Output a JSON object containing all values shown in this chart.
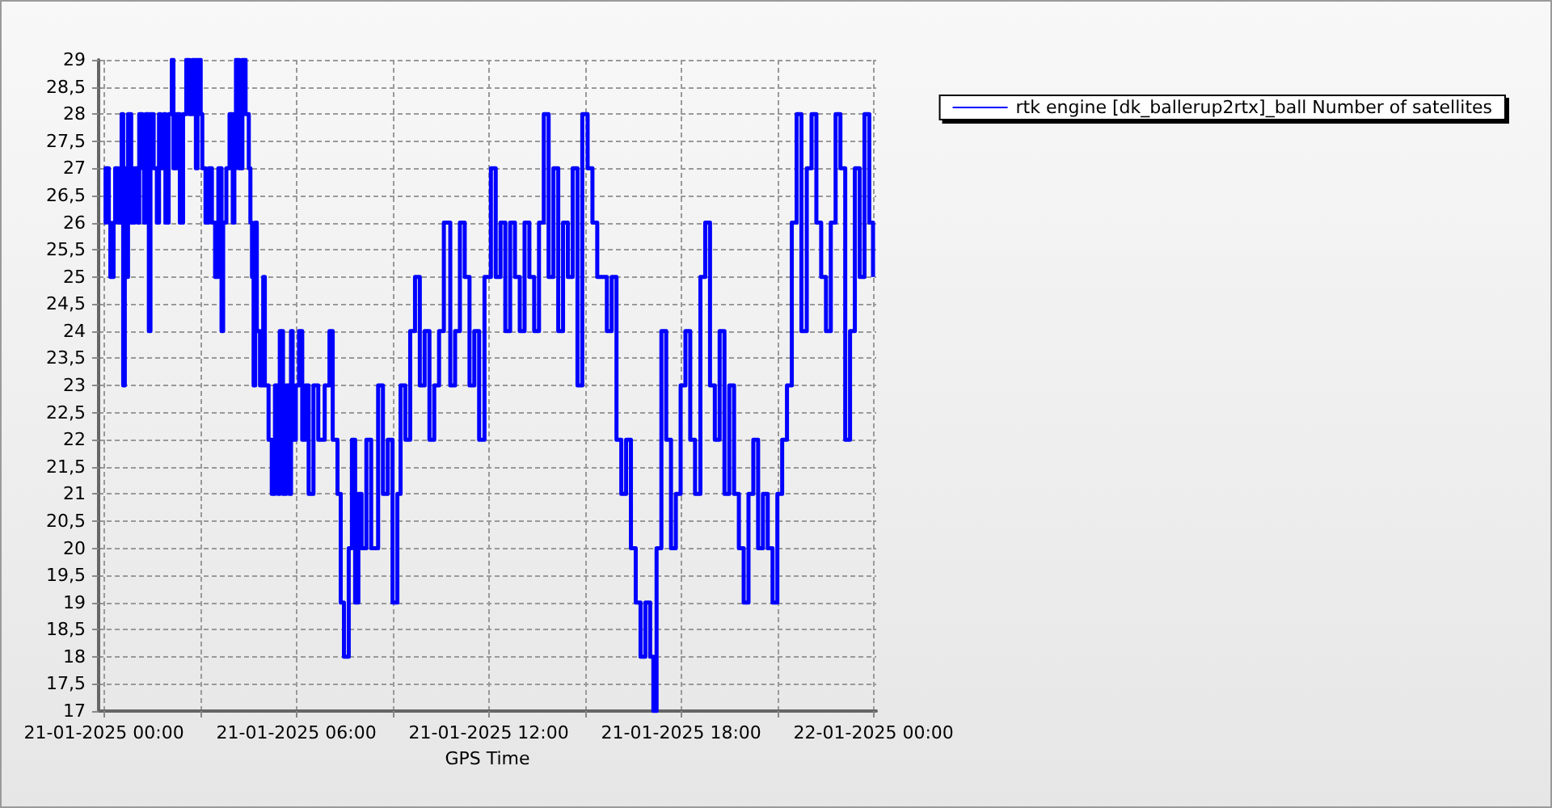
{
  "chart_data": {
    "type": "step",
    "xlabel": "GPS Time",
    "xlim": [
      "2025-01-20T23:50",
      "2025-01-22T00:05"
    ],
    "xticks": [
      {
        "value": "2025-01-21T00:00",
        "label": "21-01-2025 00:00"
      },
      {
        "value": "2025-01-21T03:00",
        "label": null
      },
      {
        "value": "2025-01-21T06:00",
        "label": "21-01-2025 06:00"
      },
      {
        "value": "2025-01-21T09:00",
        "label": null
      },
      {
        "value": "2025-01-21T12:00",
        "label": "21-01-2025 12:00"
      },
      {
        "value": "2025-01-21T15:00",
        "label": null
      },
      {
        "value": "2025-01-21T18:00",
        "label": "21-01-2025 18:00"
      },
      {
        "value": "2025-01-21T21:00",
        "label": null
      },
      {
        "value": "2025-01-22T00:00",
        "label": "22-01-2025 00:00"
      }
    ],
    "ylim": [
      17,
      29
    ],
    "yticks": [
      17,
      {
        "value": 17.5,
        "label": "17,5"
      },
      18,
      {
        "value": 18.5,
        "label": "18,5"
      },
      19,
      {
        "value": 19.5,
        "label": "19,5"
      },
      20,
      {
        "value": 20.5,
        "label": "20,5"
      },
      21,
      {
        "value": 21.5,
        "label": "21,5"
      },
      22,
      {
        "value": 22.5,
        "label": "22,5"
      },
      23,
      {
        "value": 23.5,
        "label": "23,5"
      },
      24,
      {
        "value": 24.5,
        "label": "24,5"
      },
      25,
      {
        "value": 25.5,
        "label": "25,5"
      },
      26,
      {
        "value": 26.5,
        "label": "26,5"
      },
      27,
      {
        "value": 27.5,
        "label": "27,5"
      },
      28,
      {
        "value": 28.5,
        "label": "28,5"
      },
      29
    ],
    "grid": true,
    "legend": "top right",
    "marker": "none",
    "line_style": "solid",
    "x": [
      "2025-01-21T00:00",
      "2025-01-21T00:03",
      "2025-01-21T00:09",
      "2025-01-21T00:12",
      "2025-01-21T00:18",
      "2025-01-21T00:21",
      "2025-01-21T00:27",
      "2025-01-21T00:33",
      "2025-01-21T00:36",
      "2025-01-21T00:39",
      "2025-01-21T00:42",
      "2025-01-21T00:45",
      "2025-01-21T00:51",
      "2025-01-21T00:57",
      "2025-01-21T01:03",
      "2025-01-21T01:06",
      "2025-01-21T01:12",
      "2025-01-21T01:15",
      "2025-01-21T01:18",
      "2025-01-21T01:24",
      "2025-01-21T01:27",
      "2025-01-21T01:33",
      "2025-01-21T01:39",
      "2025-01-21T01:43",
      "2025-01-21T01:46",
      "2025-01-21T01:52",
      "2025-01-21T01:55",
      "2025-01-21T02:01",
      "2025-01-21T02:07",
      "2025-01-21T02:10",
      "2025-01-21T02:16",
      "2025-01-21T02:22",
      "2025-01-21T02:28",
      "2025-01-21T02:34",
      "2025-01-21T02:40",
      "2025-01-21T02:46",
      "2025-01-21T02:52",
      "2025-01-21T02:55",
      "2025-01-21T03:01",
      "2025-01-21T03:04",
      "2025-01-21T03:10",
      "2025-01-21T03:16",
      "2025-01-21T03:22",
      "2025-01-21T03:28",
      "2025-01-21T03:34",
      "2025-01-21T03:40",
      "2025-01-21T03:43",
      "2025-01-21T03:49",
      "2025-01-21T03:55",
      "2025-01-21T04:01",
      "2025-01-21T04:04",
      "2025-01-21T04:07",
      "2025-01-21T04:13",
      "2025-01-21T04:19",
      "2025-01-21T04:25",
      "2025-01-21T04:31",
      "2025-01-21T04:34",
      "2025-01-21T04:37",
      "2025-01-21T04:40",
      "2025-01-21T04:43",
      "2025-01-21T04:46",
      "2025-01-21T04:52",
      "2025-01-21T04:58",
      "2025-01-21T05:01",
      "2025-01-21T05:08",
      "2025-01-21T05:14",
      "2025-01-21T05:20",
      "2025-01-21T05:26",
      "2025-01-21T05:29",
      "2025-01-21T05:35",
      "2025-01-21T05:41",
      "2025-01-21T05:47",
      "2025-01-21T05:50",
      "2025-01-21T05:53",
      "2025-01-21T05:59",
      "2025-01-21T06:05",
      "2025-01-21T06:11",
      "2025-01-21T06:17",
      "2025-01-21T06:23",
      "2025-01-21T06:32",
      "2025-01-21T06:41",
      "2025-01-21T06:53",
      "2025-01-21T07:02",
      "2025-01-21T07:08",
      "2025-01-21T07:17",
      "2025-01-21T07:23",
      "2025-01-21T07:29",
      "2025-01-21T07:38",
      "2025-01-21T07:44",
      "2025-01-21T07:50",
      "2025-01-21T07:56",
      "2025-01-21T08:02",
      "2025-01-21T08:11",
      "2025-01-21T08:20",
      "2025-01-21T08:33",
      "2025-01-21T08:42",
      "2025-01-21T08:51",
      "2025-01-21T09:00",
      "2025-01-21T09:09",
      "2025-01-21T09:15",
      "2025-01-21T09:24",
      "2025-01-21T09:33",
      "2025-01-21T09:42",
      "2025-01-21T09:51",
      "2025-01-21T10:00",
      "2025-01-21T10:09",
      "2025-01-21T10:18",
      "2025-01-21T10:27",
      "2025-01-21T10:36",
      "2025-01-21T10:48",
      "2025-01-21T10:57",
      "2025-01-21T11:06",
      "2025-01-21T11:15",
      "2025-01-21T11:24",
      "2025-01-21T11:33",
      "2025-01-21T11:42",
      "2025-01-21T11:52",
      "2025-01-21T12:04",
      "2025-01-21T12:13",
      "2025-01-21T12:22",
      "2025-01-21T12:31",
      "2025-01-21T12:40",
      "2025-01-21T12:49",
      "2025-01-21T12:58",
      "2025-01-21T13:07",
      "2025-01-21T13:16",
      "2025-01-21T13:25",
      "2025-01-21T13:34",
      "2025-01-21T13:43",
      "2025-01-21T13:52",
      "2025-01-21T14:01",
      "2025-01-21T14:10",
      "2025-01-21T14:19",
      "2025-01-21T14:28",
      "2025-01-21T14:37",
      "2025-01-21T14:46",
      "2025-01-21T14:55",
      "2025-01-21T15:05",
      "2025-01-21T15:14",
      "2025-01-21T15:23",
      "2025-01-21T15:41",
      "2025-01-21T15:50",
      "2025-01-21T15:59",
      "2025-01-21T16:08",
      "2025-01-21T16:17",
      "2025-01-21T16:26",
      "2025-01-21T16:35",
      "2025-01-21T16:44",
      "2025-01-21T16:53",
      "2025-01-21T17:02",
      "2025-01-21T17:08",
      "2025-01-21T17:14",
      "2025-01-21T17:23",
      "2025-01-21T17:32",
      "2025-01-21T17:41",
      "2025-01-21T17:50",
      "2025-01-21T17:59",
      "2025-01-21T18:08",
      "2025-01-21T18:17",
      "2025-01-21T18:26",
      "2025-01-21T18:36",
      "2025-01-21T18:45",
      "2025-01-21T18:54",
      "2025-01-21T19:03",
      "2025-01-21T19:12",
      "2025-01-21T19:21",
      "2025-01-21T19:30",
      "2025-01-21T19:39",
      "2025-01-21T19:48",
      "2025-01-21T19:57",
      "2025-01-21T20:06",
      "2025-01-21T20:15",
      "2025-01-21T20:24",
      "2025-01-21T20:33",
      "2025-01-21T20:42",
      "2025-01-21T20:51",
      "2025-01-21T21:00",
      "2025-01-21T21:09",
      "2025-01-21T21:18",
      "2025-01-21T21:27",
      "2025-01-21T21:36",
      "2025-01-21T21:45",
      "2025-01-21T21:55",
      "2025-01-21T22:04",
      "2025-01-21T22:13",
      "2025-01-21T22:22",
      "2025-01-21T22:31",
      "2025-01-21T22:40",
      "2025-01-21T22:49",
      "2025-01-21T22:58",
      "2025-01-21T23:07",
      "2025-01-21T23:16",
      "2025-01-21T23:25",
      "2025-01-21T23:34",
      "2025-01-21T23:43",
      "2025-01-21T23:52",
      "2025-01-21T23:59"
    ],
    "series": [
      {
        "name": "rtk engine [dk_ballerup2rtx]_ball Number of satellites",
        "color": "#0000ff",
        "values": [
          26,
          27,
          26,
          25,
          26,
          27,
          26,
          28,
          23,
          27,
          25,
          28,
          26,
          27,
          26,
          28,
          27,
          26,
          28,
          24,
          28,
          27,
          26,
          28,
          27,
          28,
          26,
          28,
          29,
          27,
          28,
          26,
          28,
          29,
          28,
          29,
          27,
          29,
          28,
          27,
          26,
          27,
          26,
          25,
          27,
          24,
          26,
          27,
          28,
          26,
          27,
          29,
          27,
          29,
          28,
          27,
          26,
          25,
          23,
          26,
          24,
          23,
          25,
          23,
          22,
          21,
          23,
          21,
          24,
          21,
          23,
          21,
          24,
          22,
          23,
          24,
          22,
          23,
          21,
          23,
          22,
          23,
          24,
          22,
          21,
          19,
          18,
          20,
          22,
          19,
          21,
          20,
          22,
          20,
          23,
          21,
          22,
          19,
          21,
          23,
          22,
          24,
          25,
          23,
          24,
          22,
          23,
          24,
          26,
          23,
          24,
          26,
          25,
          23,
          24,
          22,
          25,
          27,
          25,
          26,
          24,
          26,
          25,
          24,
          26,
          25,
          24,
          26,
          28,
          25,
          27,
          24,
          26,
          25,
          27,
          23,
          28,
          27,
          26,
          25,
          24,
          25,
          22,
          21,
          22,
          20,
          19,
          18,
          19,
          18,
          17,
          20,
          24,
          22,
          20,
          21,
          23,
          24,
          22,
          21,
          25,
          26,
          23,
          22,
          24,
          21,
          23,
          21,
          20,
          19,
          21,
          22,
          20,
          21,
          20,
          19,
          21,
          22,
          23,
          26,
          28,
          24,
          27,
          28,
          26,
          25,
          24,
          26,
          28,
          27,
          22,
          24,
          27,
          25,
          28,
          26,
          25
        ]
      }
    ]
  }
}
